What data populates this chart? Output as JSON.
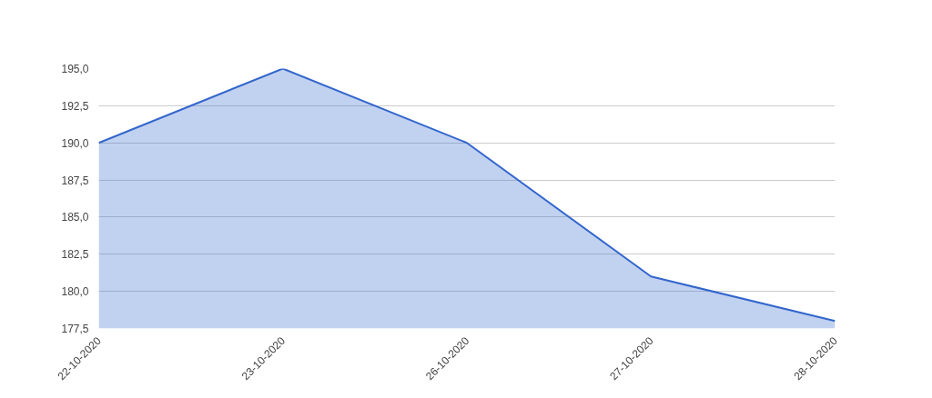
{
  "chart_data": {
    "type": "area",
    "categories": [
      "22-10-2020",
      "23-10-2020",
      "26-10-2020",
      "27-10-2020",
      "28-10-2020"
    ],
    "series": [
      {
        "color": "#3366cc",
        "values": [
          190,
          195,
          190,
          181,
          178
        ]
      }
    ],
    "ylim": [
      177.5,
      195
    ],
    "yticks": [
      {
        "value": 177.5,
        "label": "177,5"
      },
      {
        "value": 180,
        "label": "180,0"
      },
      {
        "value": 182.5,
        "label": "182,5"
      },
      {
        "value": 185,
        "label": "185,0"
      },
      {
        "value": 187.5,
        "label": "187,5"
      },
      {
        "value": 190,
        "label": "190,0"
      },
      {
        "value": 192.5,
        "label": "192,5"
      },
      {
        "value": 195,
        "label": "195,0"
      }
    ],
    "grid": "y"
  }
}
